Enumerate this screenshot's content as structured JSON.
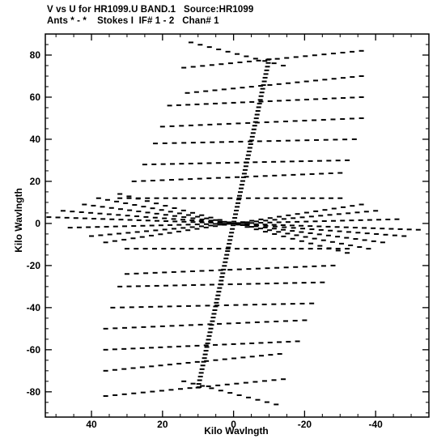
{
  "header": {
    "line1": "V vs U for HR1099.U BAND.1   Source:HR1099",
    "line2": "Ants * - *    Stokes I  IF# 1 - 2   Chan# 1"
  },
  "chart_data": {
    "type": "scatter",
    "xlabel": "Kilo Wavlngth",
    "ylabel": "Kilo Wavlngth",
    "xlim": [
      53,
      -55
    ],
    "ylim": [
      -92,
      90
    ],
    "x_inverted": true,
    "xticks": [
      40,
      20,
      0,
      -20,
      -40
    ],
    "yticks": [
      80,
      60,
      40,
      20,
      0,
      -20,
      -40,
      -60,
      -80
    ],
    "xtick_labels": [
      "40",
      "20",
      "0",
      "-20",
      "-40"
    ],
    "ytick_labels": [
      "80",
      "60",
      "40",
      "20",
      "0",
      "-20",
      "-40",
      "-60",
      "-80"
    ],
    "grid": false,
    "marker": "short horizontal dash",
    "tracks": [
      {
        "name": "",
        "note": "near-vertical baseline track through origin",
        "start": [
          -10,
          78
        ],
        "end": [
          10,
          -78
        ],
        "n": 90
      },
      {
        "name": "",
        "note": "rays from upper-left toward lower-right",
        "rays": [
          {
            "start": [
              12,
              86
            ],
            "end": [
              -14,
              75
            ]
          },
          {
            "start": [
              14,
              74
            ],
            "end": [
              -36,
              82
            ]
          },
          {
            "start": [
              13,
              62
            ],
            "end": [
              -36,
              70
            ]
          },
          {
            "start": [
              18,
              56
            ],
            "end": [
              -36,
              60
            ]
          },
          {
            "start": [
              20,
              46
            ],
            "end": [
              -36,
              50
            ]
          },
          {
            "start": [
              22,
              38
            ],
            "end": [
              -34,
              40
            ]
          },
          {
            "start": [
              25,
              28
            ],
            "end": [
              -32,
              30
            ]
          },
          {
            "start": [
              28,
              20
            ],
            "end": [
              -30,
              24
            ]
          },
          {
            "start": [
              32,
              12
            ],
            "end": [
              -30,
              12
            ]
          }
        ]
      },
      {
        "name": "",
        "note": "rays mirrored below origin",
        "rays": [
          {
            "start": [
              -12,
              -86
            ],
            "end": [
              14,
              -75
            ]
          },
          {
            "start": [
              -14,
              -74
            ],
            "end": [
              36,
              -82
            ]
          },
          {
            "start": [
              -13,
              -62
            ],
            "end": [
              36,
              -70
            ]
          },
          {
            "start": [
              -18,
              -56
            ],
            "end": [
              36,
              -60
            ]
          },
          {
            "start": [
              -20,
              -46
            ],
            "end": [
              36,
              -50
            ]
          },
          {
            "start": [
              -22,
              -38
            ],
            "end": [
              34,
              -40
            ]
          },
          {
            "start": [
              -25,
              -28
            ],
            "end": [
              32,
              -30
            ]
          },
          {
            "start": [
              -28,
              -20
            ],
            "end": [
              30,
              -24
            ]
          },
          {
            "start": [
              -32,
              -12
            ],
            "end": [
              30,
              -12
            ]
          }
        ]
      },
      {
        "name": "",
        "note": "nearly horizontal fan around origin",
        "rays": [
          {
            "start": [
              52,
              3
            ],
            "end": [
              -52,
              -3
            ]
          },
          {
            "start": [
              48,
              6
            ],
            "end": [
              -48,
              -6
            ]
          },
          {
            "start": [
              46,
              -2
            ],
            "end": [
              -46,
              2
            ]
          },
          {
            "start": [
              42,
              9
            ],
            "end": [
              -42,
              -9
            ]
          },
          {
            "start": [
              40,
              -6
            ],
            "end": [
              -40,
              6
            ]
          },
          {
            "start": [
              38,
              12
            ],
            "end": [
              -38,
              -12
            ]
          },
          {
            "start": [
              36,
              -9
            ],
            "end": [
              -36,
              9
            ]
          },
          {
            "start": [
              32,
              14
            ],
            "end": [
              -32,
              -14
            ]
          }
        ]
      }
    ]
  }
}
